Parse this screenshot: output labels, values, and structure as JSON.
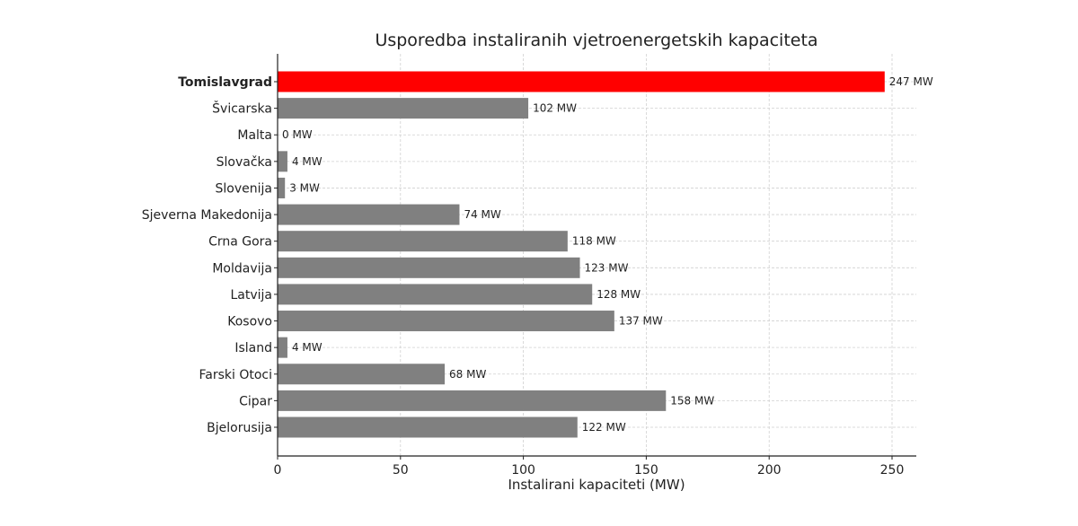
{
  "chart_data": {
    "type": "bar",
    "orientation": "horizontal",
    "title": "Usporedba instaliranih vjetroenergetskih kapaciteta",
    "xlabel": "Instalirani kapaciteti (MW)",
    "ylabel": "",
    "xlim": [
      0,
      260
    ],
    "xticks": [
      0,
      50,
      100,
      150,
      200,
      250
    ],
    "grid": true,
    "value_suffix": " MW",
    "categories": [
      "Tomislavgrad",
      "Švicarska",
      "Malta",
      "Slovačka",
      "Slovenija",
      "Sjeverna Makedonija",
      "Crna Gora",
      "Moldavija",
      "Latvija",
      "Kosovo",
      "Island",
      "Farski Otoci",
      "Cipar",
      "Bjelorusija"
    ],
    "values": [
      247,
      102,
      0,
      4,
      3,
      74,
      118,
      123,
      128,
      137,
      4,
      68,
      158,
      122
    ],
    "highlight": "Tomislavgrad",
    "colors": {
      "highlight": "#ff0000",
      "default": "#808080"
    }
  }
}
